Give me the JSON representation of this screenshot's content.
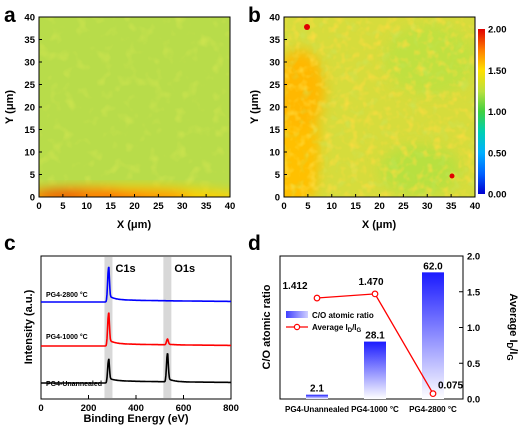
{
  "panels": {
    "a": "a",
    "b": "b",
    "c": "c",
    "d": "d"
  },
  "colorbar": {
    "ticks": [
      "2.00",
      "1.50",
      "1.00",
      "0.50",
      "0.00"
    ],
    "colors": [
      "#0000d0",
      "#0080ff",
      "#00d0d0",
      "#40d040",
      "#c8e040",
      "#ffe000",
      "#ff8000",
      "#ff2000",
      "#d00000"
    ]
  },
  "chart_data": [
    {
      "type": "heatmap",
      "panel": "a",
      "xlabel": "X (μm)",
      "ylabel": "Y (μm)",
      "xlim": [
        0,
        40
      ],
      "ylim": [
        0,
        40
      ],
      "xticks": [
        "0",
        "5",
        "10",
        "15",
        "20",
        "25",
        "30",
        "35",
        "40"
      ],
      "yticks": [
        "0",
        "5",
        "10",
        "15",
        "20",
        "25",
        "30",
        "35",
        "40"
      ],
      "value_range": [
        0,
        2
      ],
      "description_values": {
        "background": 1.3,
        "bottom_band": 1.9
      }
    },
    {
      "type": "heatmap",
      "panel": "b",
      "xlabel": "X (μm)",
      "ylabel": "Y (μm)",
      "xlim": [
        0,
        40
      ],
      "ylim": [
        0,
        40
      ],
      "xticks": [
        "0",
        "5",
        "10",
        "15",
        "20",
        "25",
        "30",
        "35",
        "40"
      ],
      "yticks": [
        "0",
        "5",
        "10",
        "15",
        "20",
        "25",
        "30",
        "35",
        "40"
      ],
      "value_range": [
        0,
        2
      ],
      "description_values": {
        "background": 1.55,
        "left_region": 1.75
      }
    },
    {
      "type": "line",
      "panel": "c",
      "xlabel": "Binding Energy (eV)",
      "ylabel": "Intensity (a.u.)",
      "xlim": [
        0,
        800
      ],
      "xticks": [
        "0",
        "200",
        "400",
        "600",
        "800"
      ],
      "annotations": [
        {
          "label": "C1s",
          "x": 284
        },
        {
          "label": "O1s",
          "x": 532
        }
      ],
      "series": [
        {
          "name": "PG4-2800 °C",
          "color": "#0000ff",
          "peaks": [
            {
              "x": 284,
              "height": 0.9
            }
          ]
        },
        {
          "name": "PG4-1000 °C",
          "color": "#ff0000",
          "peaks": [
            {
              "x": 284,
              "height": 0.85
            },
            {
              "x": 532,
              "height": 0.15
            }
          ]
        },
        {
          "name": "PG4-Unannealed",
          "color": "#000000",
          "peaks": [
            {
              "x": 284,
              "height": 0.6
            },
            {
              "x": 532,
              "height": 0.75
            }
          ]
        }
      ]
    },
    {
      "type": "bar",
      "panel": "d",
      "categories": [
        "PG4-Unannealed",
        "PG4-1000 °C",
        "PG4-2800 °C"
      ],
      "ylabel": "C/O atomic ratio",
      "ylabel_right": "Average ID/IG",
      "ylim": [
        0,
        70
      ],
      "ylim_right": [
        0,
        2.0
      ],
      "yticks_right": [
        "0.0",
        "0.5",
        "1.0",
        "1.5",
        "2.0"
      ],
      "series": [
        {
          "name": "C/O atomic ratio",
          "type": "bar",
          "axis": "left",
          "values": [
            2.1,
            28.1,
            62.0
          ],
          "labels": [
            "2.1",
            "28.1",
            "62.0"
          ]
        },
        {
          "name": "Average ID/IG",
          "type": "line",
          "axis": "right",
          "values": [
            1.412,
            1.47,
            0.075
          ],
          "labels": [
            "1.412",
            "1.470",
            "0.075"
          ]
        }
      ],
      "legend": {
        "placement": "middle-left",
        "bar_label": "C/O atomic ratio",
        "line_label_main": "Average I",
        "line_sub1": "D",
        "line_sep": "/I",
        "line_sub2": "G"
      }
    }
  ]
}
